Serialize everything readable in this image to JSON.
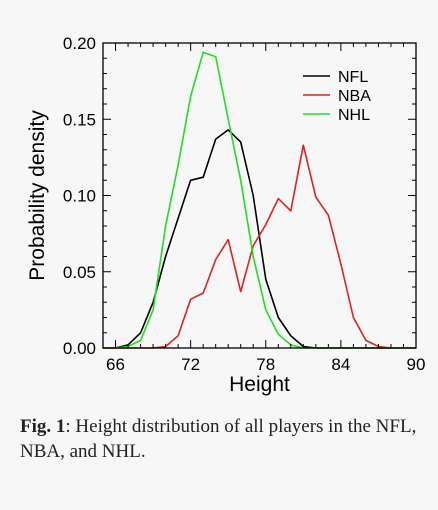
{
  "chart_data": {
    "type": "line",
    "title": "",
    "xlabel": "Height",
    "ylabel": "Probability density",
    "xlim": [
      65,
      90
    ],
    "ylim": [
      0,
      0.2
    ],
    "x_ticks": [
      66,
      72,
      78,
      84,
      90
    ],
    "x_tick_labels": [
      "66",
      "72",
      "78",
      "84",
      "90"
    ],
    "y_ticks": [
      0,
      0.05,
      0.1,
      0.15,
      0.2
    ],
    "y_tick_labels": [
      "0.00",
      "0.05",
      "0.10",
      "0.15",
      "0.20"
    ],
    "grid": false,
    "legend_position": "top-right",
    "series": [
      {
        "name": "NFL",
        "color": "#000000",
        "x": [
          65,
          66,
          67,
          68,
          69,
          70,
          71,
          72,
          73,
          74,
          75,
          76,
          77,
          78,
          79,
          80,
          81,
          82,
          83,
          84,
          85,
          86,
          87,
          88,
          89,
          90
        ],
        "y": [
          0,
          0,
          0.002,
          0.01,
          0.03,
          0.06,
          0.085,
          0.11,
          0.112,
          0.137,
          0.143,
          0.135,
          0.1,
          0.045,
          0.02,
          0.008,
          0.001,
          0,
          0,
          0,
          0,
          0,
          0,
          0,
          0,
          0
        ]
      },
      {
        "name": "NBA",
        "color": "#dd2222",
        "x": [
          65,
          66,
          67,
          68,
          69,
          70,
          71,
          72,
          73,
          74,
          75,
          76,
          77,
          78,
          79,
          80,
          81,
          82,
          83,
          84,
          85,
          86,
          87,
          88,
          89,
          90
        ],
        "y": [
          0,
          0,
          0,
          0,
          0,
          0.001,
          0.008,
          0.032,
          0.036,
          0.058,
          0.071,
          0.037,
          0.067,
          0.081,
          0.098,
          0.09,
          0.133,
          0.099,
          0.087,
          0.055,
          0.02,
          0.005,
          0.001,
          0,
          0,
          0
        ]
      },
      {
        "name": "NHL",
        "color": "#22dd22",
        "x": [
          65,
          66,
          67,
          68,
          69,
          70,
          71,
          72,
          73,
          74,
          75,
          76,
          77,
          78,
          79,
          80,
          81,
          82,
          83,
          84,
          85,
          86,
          87,
          88,
          89,
          90
        ],
        "y": [
          0,
          0,
          0.001,
          0.005,
          0.025,
          0.08,
          0.12,
          0.165,
          0.194,
          0.191,
          0.15,
          0.11,
          0.06,
          0.025,
          0.009,
          0.002,
          0,
          0,
          0,
          0,
          0,
          0,
          0,
          0,
          0,
          0
        ]
      }
    ]
  },
  "caption": {
    "label": "Fig. 1",
    "text": ": Height distribution of all players in the NFL, NBA, and NHL."
  }
}
